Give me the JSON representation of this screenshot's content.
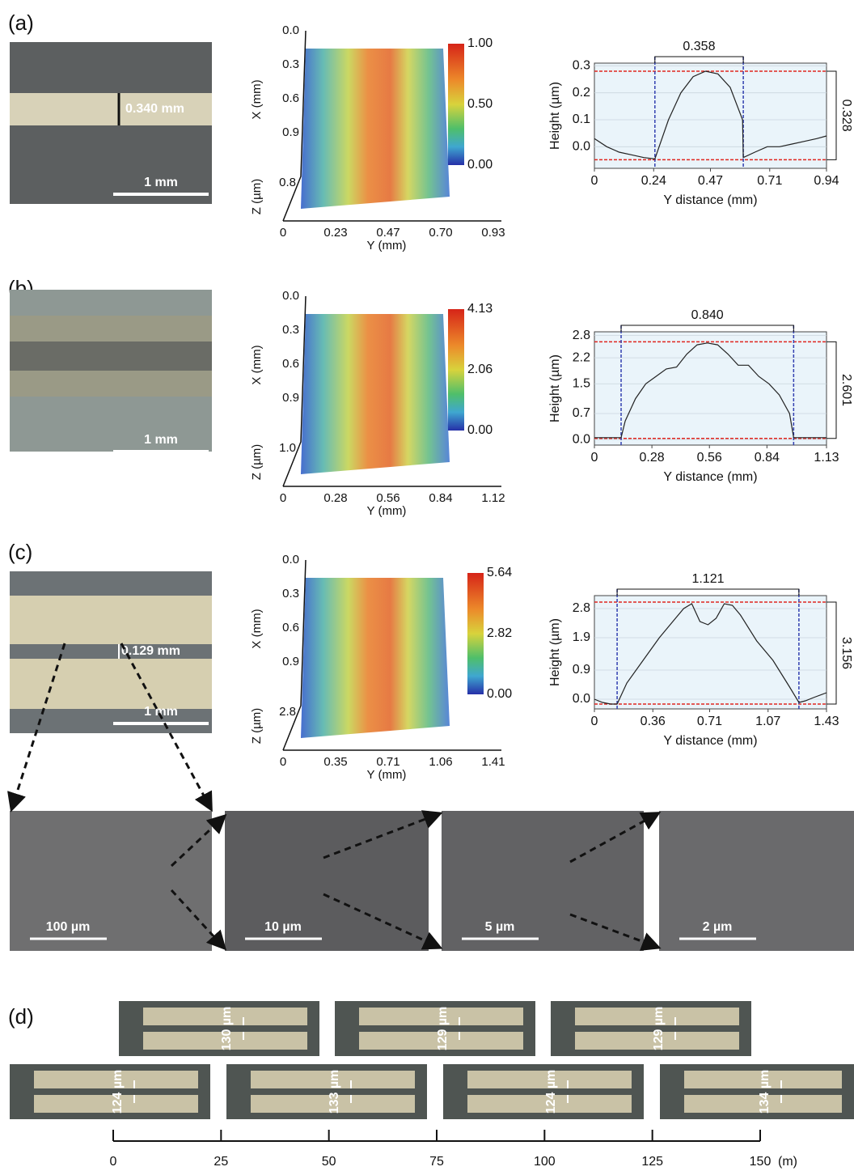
{
  "panels": [
    {
      "label": "(a)",
      "optical": {
        "width": "0.340 mm",
        "scale": "1 mm"
      },
      "surface": {
        "x_title": "X (mm)",
        "y_title": "Y (mm)",
        "z_title": "Z (µm)",
        "x_ticks": [
          "0.0",
          "0.3",
          "0.6",
          "0.9"
        ],
        "z_ticks": [
          "0.8"
        ],
        "y_ticks": [
          "0",
          "0.23",
          "0.47",
          "0.70",
          "0.93"
        ],
        "colorbar": [
          "1.00",
          "0.50",
          "0.00"
        ]
      },
      "profile": {
        "type": "line",
        "x_title": "Y distance (mm)",
        "y_title": "Height (µm)",
        "color": "#222222",
        "xlim": [
          0,
          0.94
        ],
        "xticks": [
          0,
          0.24,
          0.47,
          0.71,
          0.94
        ],
        "ylim": [
          -0.08,
          0.31
        ],
        "yticks": [
          {
            "value": 0,
            "label": "0.0"
          },
          0.1,
          0.2,
          0.3
        ],
        "x": [
          0,
          0.05,
          0.1,
          0.15,
          0.2,
          0.245,
          0.3,
          0.35,
          0.4,
          0.45,
          0.5,
          0.55,
          0.6,
          0.603,
          0.65,
          0.7,
          0.75,
          0.8,
          0.85,
          0.9,
          0.94
        ],
        "values": [
          0.03,
          0.0,
          -0.02,
          -0.03,
          -0.04,
          -0.045,
          0.1,
          0.2,
          0.26,
          0.28,
          0.27,
          0.22,
          0.1,
          -0.04,
          -0.02,
          0.0,
          0.0,
          0.01,
          0.02,
          0.03,
          0.04
        ],
        "span_x": [
          0.245,
          0.603
        ],
        "span_y": [
          -0.048,
          0.28
        ],
        "span_x_label": "0.358",
        "span_y_label": "0.328"
      }
    },
    {
      "label": "(b)",
      "optical": {
        "scale": "1 mm"
      },
      "surface": {
        "x_title": "X (mm)",
        "y_title": "Y (mm)",
        "z_title": "Z (µm)",
        "x_ticks": [
          "0.0",
          "0.3",
          "0.6",
          "0.9"
        ],
        "z_ticks": [
          "1.0"
        ],
        "y_ticks": [
          "0",
          "0.28",
          "0.56",
          "0.84",
          "1.12"
        ],
        "colorbar": [
          "4.13",
          "2.06",
          "0.00"
        ]
      },
      "profile": {
        "type": "line",
        "x_title": "Y distance (mm)",
        "y_title": "Height (µm)",
        "color": "#222222",
        "xlim": [
          0,
          1.13
        ],
        "xticks": [
          0,
          0.28,
          0.56,
          0.84,
          1.13
        ],
        "ylim": [
          -0.15,
          2.9
        ],
        "yticks": [
          {
            "value": 0,
            "label": "0.0"
          },
          0.7,
          1.5,
          2.2,
          2.8
        ],
        "x": [
          0,
          0.05,
          0.1,
          0.13,
          0.15,
          0.2,
          0.25,
          0.3,
          0.35,
          0.4,
          0.45,
          0.5,
          0.55,
          0.6,
          0.65,
          0.7,
          0.75,
          0.8,
          0.85,
          0.9,
          0.95,
          0.97,
          1.0,
          1.05,
          1.13
        ],
        "values": [
          0.05,
          0.05,
          0.05,
          0.05,
          0.5,
          1.1,
          1.5,
          1.7,
          1.9,
          1.95,
          2.3,
          2.55,
          2.6,
          2.55,
          2.3,
          2.0,
          2.0,
          1.7,
          1.5,
          1.2,
          0.7,
          0.05,
          0.05,
          0.05,
          0.05
        ],
        "span_x": [
          0.13,
          0.97
        ],
        "span_y": [
          0.03,
          2.63
        ],
        "span_x_label": "0.840",
        "span_y_label": "2.601"
      }
    },
    {
      "label": "(c)",
      "optical": {
        "width": "0.129 mm",
        "scale": "1 mm"
      },
      "surface": {
        "x_title": "X (mm)",
        "y_title": "Y (mm)",
        "z_title": "Z (µm)",
        "x_ticks": [
          "0.0",
          "0.3",
          "0.6",
          "0.9"
        ],
        "z_ticks": [
          "2.8"
        ],
        "y_ticks": [
          "0",
          "0.35",
          "0.71",
          "1.06",
          "1.41"
        ],
        "colorbar": [
          "5.64",
          "2.82",
          "0.00"
        ]
      },
      "profile": {
        "type": "line",
        "x_title": "Y distance (mm)",
        "y_title": "Height (µm)",
        "color": "#222222",
        "xlim": [
          0,
          1.43
        ],
        "xticks": [
          0,
          0.36,
          0.71,
          1.07,
          1.43
        ],
        "ylim": [
          -0.3,
          3.2
        ],
        "yticks": [
          {
            "value": 0,
            "label": "0.0"
          },
          0.9,
          1.9,
          2.8
        ],
        "x": [
          0,
          0.05,
          0.1,
          0.14,
          0.2,
          0.3,
          0.4,
          0.5,
          0.55,
          0.6,
          0.65,
          0.7,
          0.75,
          0.8,
          0.85,
          0.9,
          1.0,
          1.1,
          1.2,
          1.26,
          1.3,
          1.35,
          1.43
        ],
        "values": [
          0.0,
          -0.1,
          -0.15,
          -0.15,
          0.5,
          1.2,
          1.9,
          2.5,
          2.8,
          2.95,
          2.4,
          2.3,
          2.5,
          2.95,
          2.9,
          2.6,
          1.8,
          1.2,
          0.4,
          -0.1,
          -0.05,
          0.05,
          0.2
        ],
        "span_x": [
          0.14,
          1.26
        ],
        "span_y": [
          -0.15,
          3.0
        ],
        "span_x_label": "1.121",
        "span_y_label": "3.156"
      }
    }
  ],
  "sem": {
    "scales": [
      "100 µm",
      "10 µm",
      "5 µm",
      "2 µm"
    ]
  },
  "d": {
    "label": "(d)",
    "top": [
      "130 µm",
      "129 µm",
      "129 µm"
    ],
    "bottom": [
      "124 µm",
      "133 µm",
      "124 µm",
      "134 µm"
    ],
    "axis": {
      "xlim": [
        0,
        150
      ],
      "ticks": [
        0,
        25,
        50,
        75,
        100,
        125,
        150
      ],
      "unit": "(m)"
    }
  }
}
